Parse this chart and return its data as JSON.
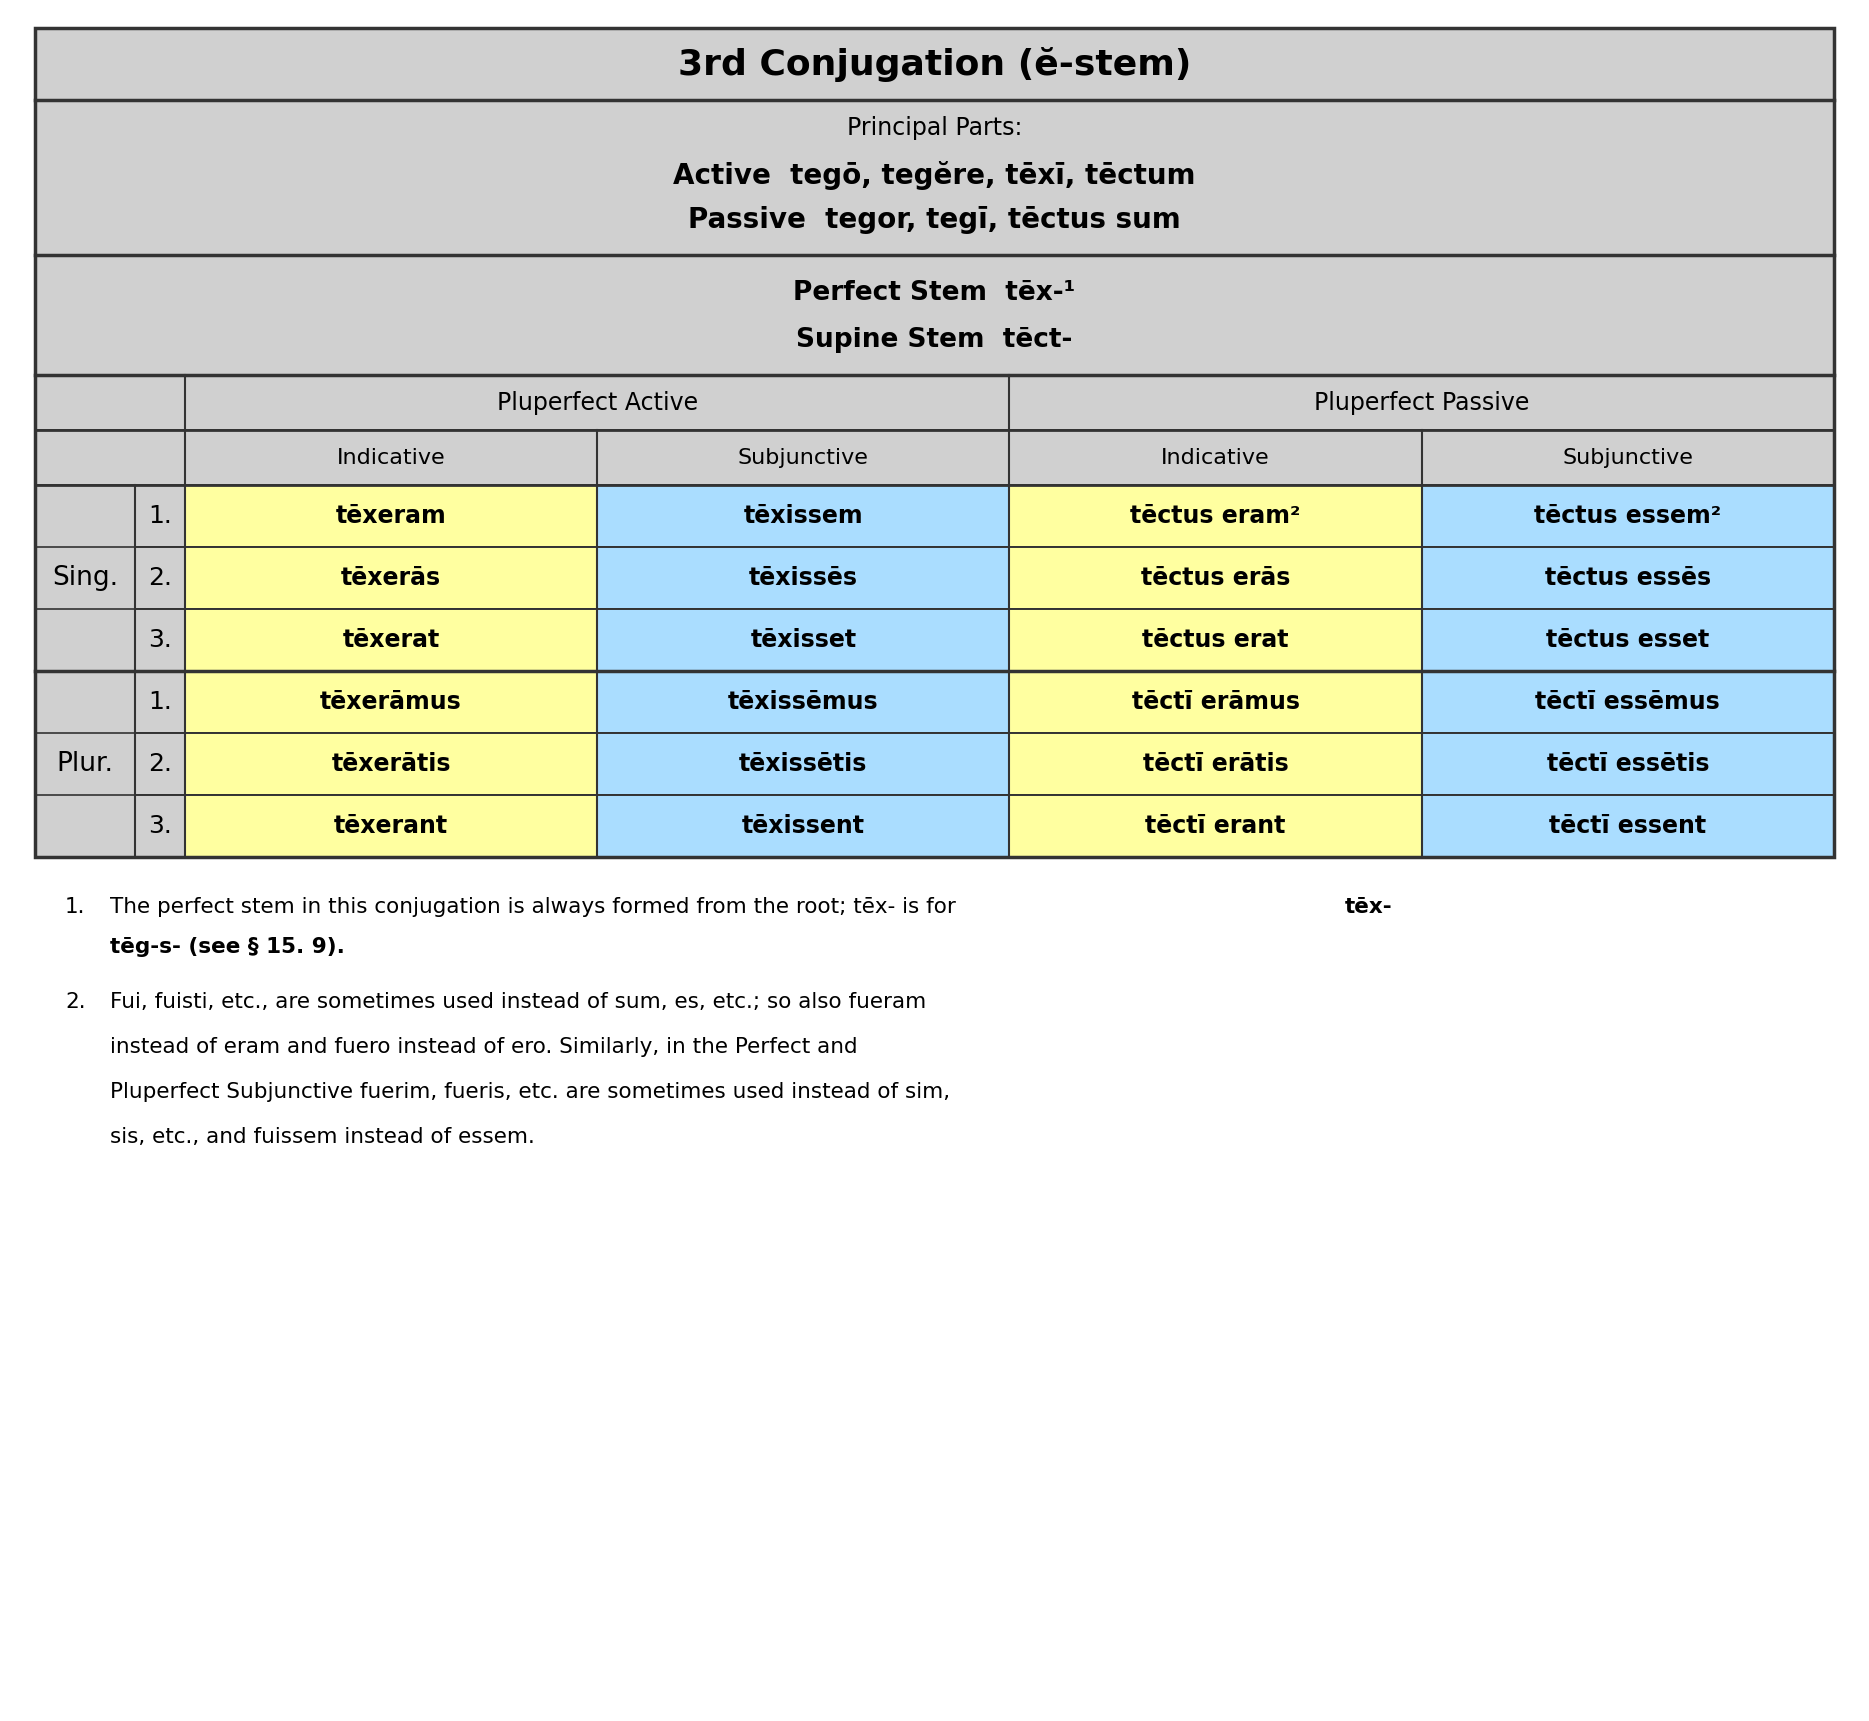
{
  "title": "3rd Conjugation (ĕ-stem)",
  "principal_parts_label": "Principal Parts:",
  "active_line": "Active  tegō, tegĕre, tēxī, tēctum",
  "passive_line": "Passive  tegor, tegī, tēctus sum",
  "perfect_stem_line": "Perfect Stem  tēx-¹",
  "supine_stem_line": "Supine Stem  tēct-",
  "col_headers_row1": [
    "Pluperfect Active",
    "Pluperfect Passive"
  ],
  "col_headers_row2": [
    "Indicative",
    "Subjunctive",
    "Indicative",
    "Subjunctive"
  ],
  "row_labels": [
    [
      "Sing.",
      "1.",
      "2.",
      "3."
    ],
    [
      "Plur.",
      "1.",
      "2.",
      "3."
    ]
  ],
  "table_data": [
    [
      "tēxeram",
      "tēxissem",
      "tēctus eram²",
      "tēctus essem²"
    ],
    [
      "tēxerās",
      "tēxissēs",
      "tēctus erās",
      "tēctus essēs"
    ],
    [
      "tēxerat",
      "tēxisset",
      "tēctus erat",
      "tēctus esset"
    ],
    [
      "tēxerāmus",
      "tēxissēmus",
      "tēctī erāmus",
      "tēctī essēmus"
    ],
    [
      "tēxerātis",
      "tēxissētis",
      "tēctī erātis",
      "tēctī essētis"
    ],
    [
      "tēxerant",
      "tēxissent",
      "tēctī erant",
      "tēctī essent"
    ]
  ],
  "note1": "The perfect stem in this conjugation is always formed from the root; tēx- is for",
  "note1b": "tēg-s- (see § 15. 9).",
  "note2a": "Fui, fuisti, etc., are sometimes used instead of sum, es, etc.; so also fueram",
  "note2b": "instead of eram and fuero instead of ero. Similarly, in the Perfect and",
  "note2c": "Pluperfect Subjunctive fuerim, fueris, etc. are sometimes used instead of sim,",
  "note2d": "sis, etc., and fuissem instead of essem.",
  "bg_gray": "#d0d0d0",
  "bg_yellow": "#ffffa0",
  "bg_blue": "#aaddff",
  "bg_white": "#ffffff",
  "border_color": "#333333",
  "text_color": "#000000"
}
